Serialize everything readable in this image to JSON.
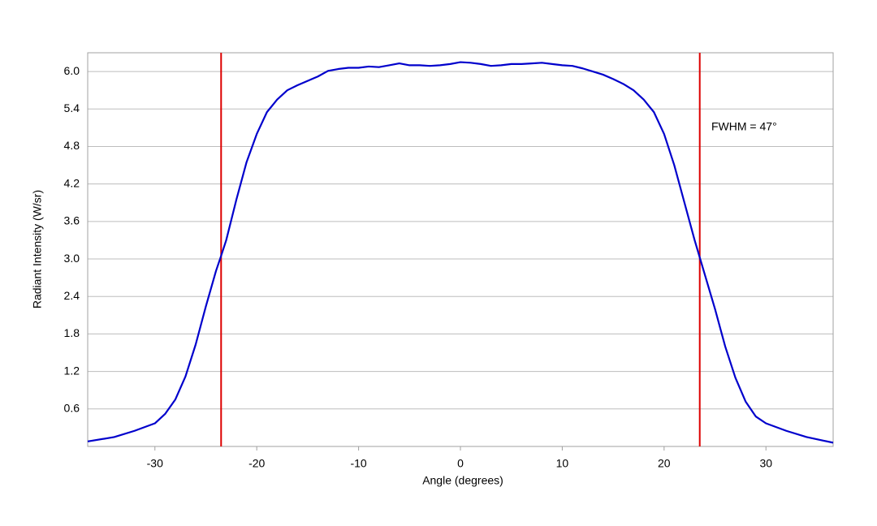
{
  "chart_data": {
    "type": "line",
    "xlabel": "Angle (degrees)",
    "ylabel": "Radiant Intensity (W/sr)",
    "annotation": "FWHM = 47°",
    "x": [
      -36.6,
      -34,
      -32,
      -30,
      -29,
      -28,
      -27,
      -26,
      -25,
      -24,
      -23.5,
      -23,
      -22,
      -21,
      -20,
      -19,
      -18,
      -17,
      -16,
      -15,
      -14,
      -13,
      -12,
      -11,
      -10,
      -9,
      -8,
      -7,
      -6,
      -5,
      -4,
      -3,
      -2,
      -1,
      0,
      1,
      2,
      3,
      4,
      5,
      6,
      7,
      8,
      9,
      10,
      11,
      12,
      13,
      14,
      15,
      16,
      17,
      18,
      19,
      20,
      21,
      22,
      23,
      24,
      25,
      26,
      27,
      28,
      29,
      30,
      32,
      34,
      36.6
    ],
    "values": [
      0.08,
      0.15,
      0.25,
      0.37,
      0.52,
      0.75,
      1.12,
      1.63,
      2.24,
      2.81,
      3.05,
      3.3,
      3.95,
      4.55,
      5.0,
      5.35,
      5.55,
      5.7,
      5.78,
      5.85,
      5.92,
      6.01,
      6.04,
      6.06,
      6.06,
      6.08,
      6.07,
      6.1,
      6.13,
      6.1,
      6.1,
      6.09,
      6.1,
      6.12,
      6.15,
      6.14,
      6.12,
      6.09,
      6.1,
      6.12,
      6.12,
      6.13,
      6.14,
      6.12,
      6.1,
      6.09,
      6.05,
      6.0,
      5.95,
      5.88,
      5.8,
      5.7,
      5.55,
      5.35,
      5.0,
      4.5,
      3.9,
      3.3,
      2.75,
      2.2,
      1.6,
      1.1,
      0.72,
      0.48,
      0.37,
      0.25,
      0.15,
      0.06
    ],
    "color": "#0000cc",
    "vlines": [
      -23.5,
      23.5
    ],
    "vline_color": "#dd0000",
    "xlim": [
      -36.6,
      36.6
    ],
    "xticks": [
      -30,
      -20,
      -10,
      0,
      10,
      20,
      30
    ],
    "ylim": [
      0,
      6.3
    ],
    "yticks": [
      0.6,
      1.2,
      1.8,
      2.4,
      {
        "value": 3,
        "label": "3.0"
      },
      3.6,
      4.2,
      4.8,
      5.4,
      {
        "value": 6,
        "label": "6.0"
      }
    ],
    "grid": true
  }
}
